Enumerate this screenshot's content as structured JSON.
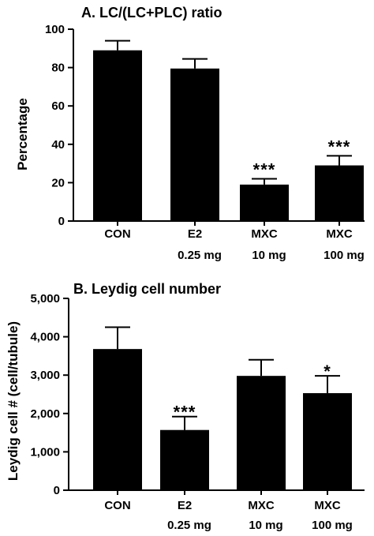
{
  "chart_data": [
    {
      "type": "bar",
      "title": "A. LC/(LC+PLC) ratio",
      "ylabel": "Percentage",
      "categories": [
        {
          "line1": "CON",
          "line2": ""
        },
        {
          "line1": "E2",
          "line2": "0.25 mg"
        },
        {
          "line1": "MXC",
          "line2": "10 mg"
        },
        {
          "line1": "MXC",
          "line2": "100 mg"
        }
      ],
      "values": [
        89,
        79.5,
        19,
        29
      ],
      "errors": [
        5,
        5,
        3,
        5
      ],
      "significance": [
        "",
        "",
        "***",
        "***"
      ],
      "ylim": [
        0,
        100
      ],
      "yticks": [
        "0",
        "20",
        "40",
        "60",
        "80",
        "100"
      ],
      "ytick_values": [
        0,
        20,
        40,
        60,
        80,
        100
      ],
      "bar_color": "#000000"
    },
    {
      "type": "bar",
      "title": "B. Leydig cell number",
      "ylabel": "Leydig cell #  (cell/tubule)",
      "categories": [
        {
          "line1": "CON",
          "line2": ""
        },
        {
          "line1": "E2",
          "line2": "0.25 mg"
        },
        {
          "line1": "MXC",
          "line2": "10 mg"
        },
        {
          "line1": "MXC",
          "line2": "100 mg"
        }
      ],
      "values": [
        3680,
        1570,
        2980,
        2530
      ],
      "errors": [
        570,
        350,
        420,
        450
      ],
      "significance": [
        "",
        "***",
        "",
        "*"
      ],
      "ylim": [
        0,
        5000
      ],
      "yticks": [
        "0",
        "1,000",
        "2,000",
        "3,000",
        "4,000",
        "5,000"
      ],
      "ytick_values": [
        0,
        1000,
        2000,
        3000,
        4000,
        5000
      ],
      "bar_color": "#000000"
    }
  ]
}
